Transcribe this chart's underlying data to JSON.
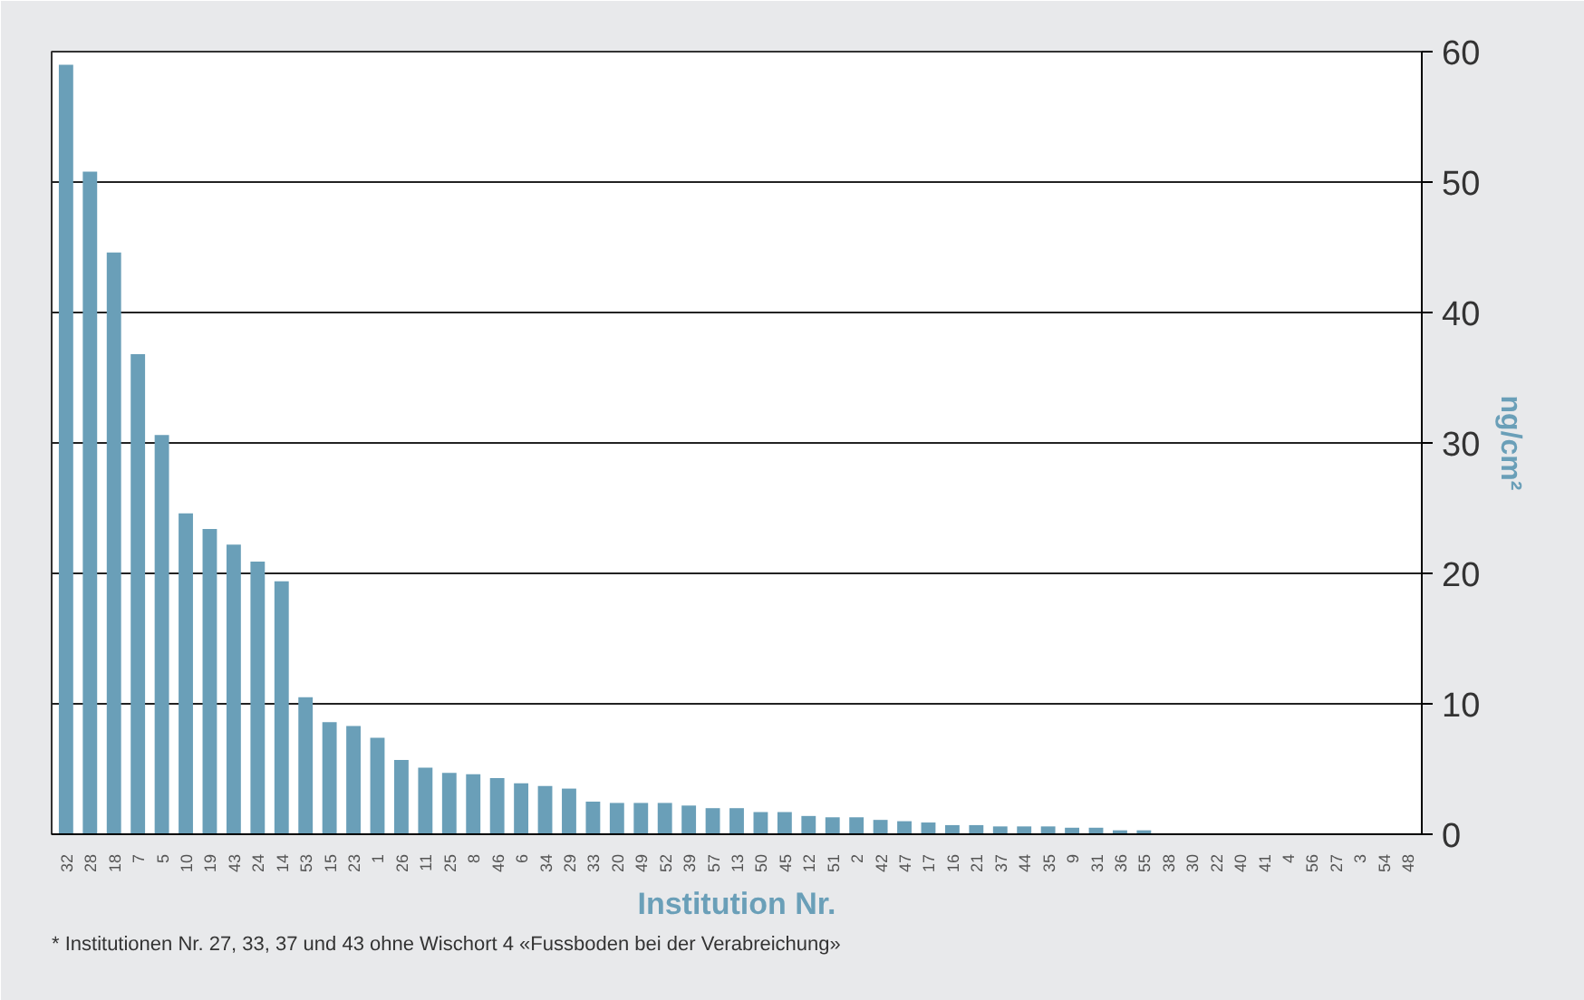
{
  "chart_data": {
    "type": "bar",
    "xlabel": "Institution Nr.",
    "ylabel": "ng/cm²",
    "categories": [
      "32",
      "28",
      "18",
      "7",
      "5",
      "10",
      "19",
      "43",
      "24",
      "14",
      "53",
      "15",
      "23",
      "1",
      "26",
      "11",
      "25",
      "8",
      "46",
      "6",
      "34",
      "29",
      "33",
      "20",
      "49",
      "52",
      "39",
      "57",
      "13",
      "50",
      "45",
      "12",
      "51",
      "2",
      "42",
      "47",
      "17",
      "16",
      "21",
      "37",
      "44",
      "35",
      "9",
      "31",
      "36",
      "55",
      "38",
      "30",
      "22",
      "40",
      "41",
      "4",
      "56",
      "27",
      "3",
      "54",
      "48"
    ],
    "values": [
      59,
      50.8,
      44.6,
      36.8,
      30.6,
      24.6,
      23.4,
      22.2,
      20.9,
      19.4,
      10.5,
      8.6,
      8.3,
      7.4,
      5.7,
      5.1,
      4.7,
      4.6,
      4.3,
      3.9,
      3.7,
      3.5,
      2.5,
      2.4,
      2.4,
      2.4,
      2.2,
      2.0,
      2.0,
      1.7,
      1.7,
      1.4,
      1.3,
      1.3,
      1.1,
      1.0,
      0.9,
      0.7,
      0.7,
      0.6,
      0.6,
      0.6,
      0.5,
      0.5,
      0.3,
      0.3,
      0,
      0,
      0,
      0,
      0,
      0,
      0,
      0,
      0,
      0,
      0
    ],
    "color": "#6a9fb8",
    "ylim": [
      0,
      60
    ],
    "yticks": [
      0,
      10,
      20,
      30,
      40,
      50,
      60
    ],
    "grid": "y",
    "annotations": [
      "* Institutionen Nr. 27, 33, 37 und 43 ohne Wischort 4 «Fussboden bei der Verabreichung»"
    ]
  }
}
